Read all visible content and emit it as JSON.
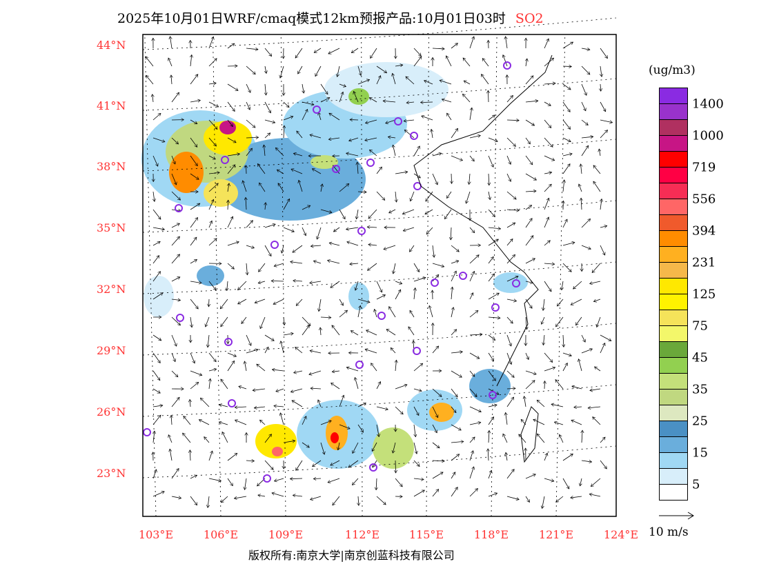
{
  "title": {
    "text": "2025年10月01日WRF/cmaq模式12km预报产品:10月01日03时",
    "species": "SO2"
  },
  "lat_labels": [
    "44°N",
    "41°N",
    "38°N",
    "35°N",
    "32°N",
    "29°N",
    "26°N",
    "23°N"
  ],
  "lon_labels": [
    "103°E",
    "106°E",
    "109°E",
    "112°E",
    "115°E",
    "118°E",
    "121°E",
    "124°E"
  ],
  "legend": {
    "unit": "(ug/m3)",
    "colors": [
      "#8a2be2",
      "#9932cc",
      "#b03060",
      "#c71585",
      "#ff0000",
      "#ff0044",
      "#f72d55",
      "#ff6666",
      "#f05a2c",
      "#ff8c00",
      "#ffb020",
      "#f5b84a",
      "#ffe800",
      "#fff200",
      "#f5e35a",
      "#f3f76a",
      "#6aa83a",
      "#92d050",
      "#c4e07a",
      "#c0d880",
      "#dde8c0",
      "#4a90c4",
      "#6aaedc",
      "#a0d8f4",
      "#d8eefa",
      "#ffffff"
    ],
    "labels": [
      "1400",
      "1000",
      "719",
      "556",
      "394",
      "231",
      "125",
      "75",
      "45",
      "35",
      "25",
      "15",
      "5"
    ]
  },
  "vector_ref": "10 m/s",
  "footer": "版权所有:南京大学|南京创蓝科技有限公司"
}
